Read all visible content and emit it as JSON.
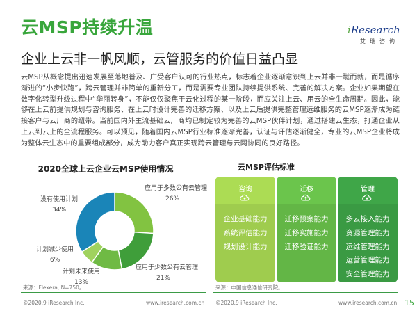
{
  "header": {
    "title": "云MSP持续升温",
    "subtitle": "企业上云非一帆风顺，云管服务的价值日益凸显",
    "logo": {
      "brand_i": "i",
      "brand_rest": "Research",
      "sub": "艾瑞咨询"
    }
  },
  "intro_text": "云MSP从概念提出迅速发展至落地普及、广受客户认可的行业热点，标志着企业逐渐意识到上云并非一蹴而就，而是循序渐进的“小步快跑”，跨云管理并非简单的重新分工，而是需要专业团队持续提供系统、完善的解决方案。企业如果期望在数字化转型升级过程中“华丽转身”，不能仅仅聚焦于云化过程的某一阶段，而应关注上云、用云的全生命周期。因此，能够在上云前提供规划与咨询服务、在上云时设计完善的迁移方案、以及上云后提供完整管理运维服务的云MSP逐渐成为链接客户与云厂商的纽带。当前国内外主流基础云厂商均已制定较为完善的云MSP伙伴计划，通过搭建云生态，打通企业从上云到云上的全流程服务。可以预见，随着国内云MSP行业标准逐渐完善，认证与评估逐渐健全，专业的云MSP企业将成为整体云生态中的重要组成部分，成为助力客户真正实现跨云管理与云网协同的良好路径。",
  "chart_data": {
    "type": "pie",
    "title": "2020全球上云企业云MSP使用情况",
    "categories": [
      "应用于多数公有云管理",
      "应用于少数公有云管理",
      "计划未来使用",
      "计划减少使用",
      "没有使用计划"
    ],
    "values": [
      26,
      21,
      13,
      6,
      34
    ],
    "value_labels": [
      "26%",
      "21%",
      "13%",
      "6%",
      "34%"
    ],
    "colors": [
      "#82c341",
      "#3f9e3a",
      "#6fba44",
      "#a0d25e",
      "#1a85b8"
    ],
    "source": "来源：Flexera, N=750。"
  },
  "evaluation": {
    "title": "云MSP评估标准",
    "columns": [
      {
        "head": "咨询",
        "icon": "cloud-gear-icon",
        "color": "#9fcc4e",
        "items": [
          "企业基础能力",
          "系统评估能力",
          "规划设计能力"
        ]
      },
      {
        "head": "迁移",
        "icon": "cloud-upload-icon",
        "color": "#63b646",
        "items": [
          "迁移预案能力",
          "迁移实施能力",
          "迁移验证能力"
        ]
      },
      {
        "head": "管理",
        "icon": "cloud-manage-icon",
        "color": "#3a9a43",
        "items": [
          "多云接入能力",
          "资源管理能力",
          "运维管理能力",
          "运营管理能力",
          "安全管理能力"
        ]
      }
    ],
    "source": "来源：中国信息通信研究院。"
  },
  "footer": {
    "left_copyright": "©2020.9 iResearch Inc.",
    "left_url": "www.iresearch.com.cn",
    "right_copyright": "©2020.9 iResearch Inc.",
    "right_url": "www.iresearch.com.cn",
    "page_number": "15"
  }
}
